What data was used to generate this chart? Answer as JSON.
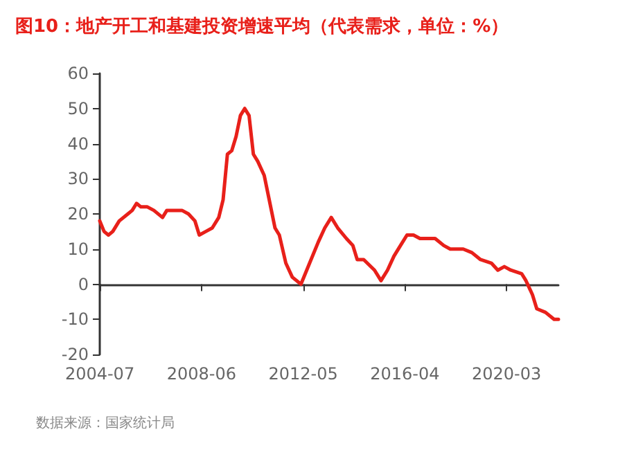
{
  "chart_data": {
    "type": "line",
    "title": "图10：地产开工和基建投资增速平均（代表需求，单位：%）",
    "annotations": [
      "数据来源：国家统计局"
    ],
    "x": [
      "2004-07",
      "2004-09",
      "2004-11",
      "2005-01",
      "2005-04",
      "2005-08",
      "2005-10",
      "2005-12",
      "2006-02",
      "2006-05",
      "2006-08",
      "2006-12",
      "2007-02",
      "2007-05",
      "2007-09",
      "2007-12",
      "2008-03",
      "2008-05",
      "2008-08",
      "2008-11",
      "2009-02",
      "2009-04",
      "2009-06",
      "2009-08",
      "2009-10",
      "2009-12",
      "2010-02",
      "2010-04",
      "2010-06",
      "2010-08",
      "2010-11",
      "2011-01",
      "2011-04",
      "2011-06",
      "2011-09",
      "2011-12",
      "2012-04",
      "2012-08",
      "2012-12",
      "2013-03",
      "2013-06",
      "2013-09",
      "2014-01",
      "2014-04",
      "2014-06",
      "2014-09",
      "2015-02",
      "2015-05",
      "2015-08",
      "2015-11",
      "2016-02",
      "2016-05",
      "2016-08",
      "2016-11",
      "2017-06",
      "2017-10",
      "2018-01",
      "2018-07",
      "2018-11",
      "2019-03",
      "2019-08",
      "2019-11",
      "2020-02",
      "2020-05",
      "2020-10",
      "2020-12",
      "2021-03",
      "2021-05",
      "2021-09",
      "2022-01",
      "2022-03"
    ],
    "series": [
      {
        "color": "#e8201a",
        "values": [
          18,
          15,
          14,
          15,
          18,
          20,
          21,
          23,
          22,
          22,
          21,
          19,
          21,
          21,
          21,
          20,
          18,
          14,
          15,
          16,
          19,
          24,
          37,
          38,
          42,
          48,
          50,
          48,
          37,
          35,
          31,
          25,
          16,
          14,
          6,
          2,
          0,
          6,
          12,
          16,
          19,
          16,
          13,
          11,
          7,
          7,
          4,
          1,
          4,
          8,
          11,
          14,
          14,
          13,
          13,
          11,
          10,
          10,
          9,
          7,
          6,
          4,
          5,
          4,
          3,
          1,
          -3,
          -7,
          -8,
          -10,
          -10
        ]
      }
    ],
    "xlim": [
      "2004-07",
      "2022-03"
    ],
    "xticks": [
      "2004-07",
      "2008-06",
      "2012-05",
      "2016-04",
      "2020-03"
    ],
    "ylim": [
      -20,
      60
    ],
    "yticks": [
      -20,
      -10,
      0,
      10,
      20,
      30,
      40,
      50,
      60
    ],
    "marker": "none",
    "line_style": "solid"
  }
}
